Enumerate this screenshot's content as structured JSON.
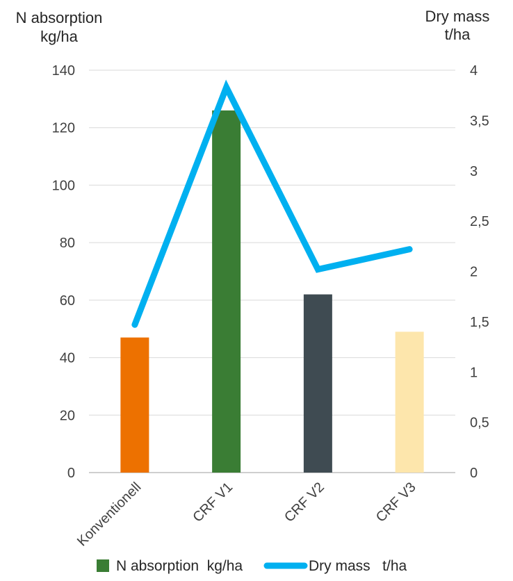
{
  "chart_data": {
    "type": "bar+line",
    "categories": [
      "Konventionell",
      "CRF V1",
      "CRF V2",
      "CRF V3"
    ],
    "series": [
      {
        "name": "N absorption  kg/ha",
        "type": "bar",
        "axis": "left",
        "values": [
          47,
          126,
          62,
          49
        ],
        "colors": [
          "#ED7100",
          "#3A7D34",
          "#3F4B52",
          "#FDE6AC"
        ]
      },
      {
        "name": "Dry mass   t/ha",
        "type": "line",
        "axis": "right",
        "values": [
          1.47,
          3.83,
          2.02,
          2.22
        ],
        "color": "#00B0F0"
      }
    ],
    "y_left": {
      "title_line1": "N absorption",
      "title_line2": "kg/ha",
      "range": [
        0,
        140
      ],
      "ticks": [
        "0",
        "20",
        "40",
        "60",
        "80",
        "100",
        "120",
        "140"
      ]
    },
    "y_right": {
      "title_line1": "Dry mass",
      "title_line2": "t/ha",
      "range": [
        0,
        4
      ],
      "ticks": [
        "0",
        "0,5",
        "1",
        "1,5",
        "2",
        "2,5",
        "3",
        "3,5",
        "4"
      ]
    },
    "grid": true,
    "legend_position": "bottom"
  }
}
